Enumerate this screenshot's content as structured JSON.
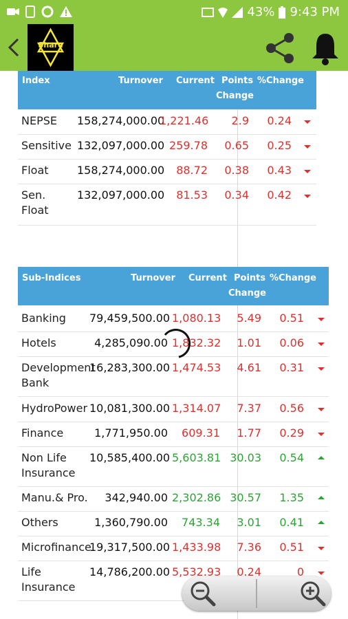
{
  "status_bar": {
    "battery": "43%",
    "time": "9:43 PM"
  },
  "app_bar": {
    "logo_text": "Share"
  },
  "index_table": {
    "headers": {
      "index": "Index",
      "turnover": "Turnover",
      "current": "Current",
      "points1": "Points",
      "points2": "Change",
      "pct": "%Change"
    },
    "rows": [
      {
        "name": "NEPSE",
        "turnover": "158,274,000.00",
        "current": "1,221.46",
        "points": "2.9",
        "pct": "0.24",
        "trend": "down"
      },
      {
        "name": "Sensitive",
        "turnover": "132,097,000.00",
        "current": "259.78",
        "points": "0.65",
        "pct": "0.25",
        "trend": "down"
      },
      {
        "name": "Float",
        "turnover": "158,274,000.00",
        "current": "88.72",
        "points": "0.38",
        "pct": "0.43",
        "trend": "down"
      },
      {
        "name": "Sen. Float",
        "turnover": "132,097,000.00",
        "current": "81.53",
        "points": "0.34",
        "pct": "0.42",
        "trend": "down"
      }
    ]
  },
  "sub_table": {
    "headers": {
      "index": "Sub-Indices",
      "turnover": "Turnover",
      "current": "Current",
      "points1": "Points",
      "points2": "Change",
      "pct": "%Change"
    },
    "rows": [
      {
        "name": "Banking",
        "turnover": "79,459,500.00",
        "current": "1,080.13",
        "points": "5.49",
        "pct": "0.51",
        "trend": "down"
      },
      {
        "name": "Hotels",
        "turnover": "4,285,090.00",
        "current": "1,832.32",
        "points": "1.01",
        "pct": "0.06",
        "trend": "down"
      },
      {
        "name": "Development Bank",
        "turnover": "16,283,300.00",
        "current": "1,474.53",
        "points": "4.61",
        "pct": "0.31",
        "trend": "down"
      },
      {
        "name": "HydroPower",
        "turnover": "10,081,300.00",
        "current": "1,314.07",
        "points": "7.37",
        "pct": "0.56",
        "trend": "down"
      },
      {
        "name": "Finance",
        "turnover": "1,771,950.00",
        "current": "609.31",
        "points": "1.77",
        "pct": "0.29",
        "trend": "down"
      },
      {
        "name": "Non Life Insurance",
        "turnover": "10,585,400.00",
        "current": "5,603.81",
        "points": "30.03",
        "pct": "0.54",
        "trend": "up"
      },
      {
        "name": "Manu.& Pro.",
        "turnover": "342,940.00",
        "current": "2,302.86",
        "points": "30.57",
        "pct": "1.35",
        "trend": "up"
      },
      {
        "name": "Others",
        "turnover": "1,360,790.00",
        "current": "743.34",
        "points": "3.01",
        "pct": "0.41",
        "trend": "up"
      },
      {
        "name": "Microfinance",
        "turnover": "19,317,500.00",
        "current": "1,433.98",
        "points": "7.36",
        "pct": "0.51",
        "trend": "down"
      },
      {
        "name": "Life Insurance",
        "turnover": "14,786,200.00",
        "current": "5,532.93",
        "points": "0.24",
        "pct": "0",
        "trend": "down"
      }
    ]
  },
  "colors": {
    "accent": "#8dc63f",
    "header": "#4aa3d8",
    "down": "#e0302d",
    "up": "#2aa531"
  }
}
